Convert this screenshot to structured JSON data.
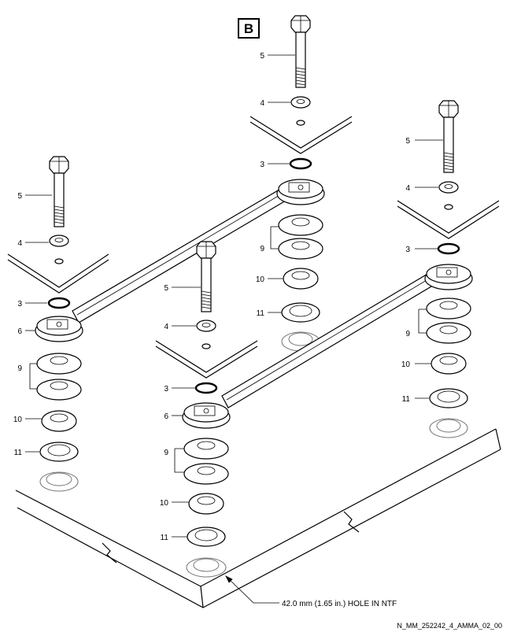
{
  "view_letter": "B",
  "parts": {
    "bolt": "5",
    "washer": "4",
    "o_ring": "3",
    "link": "6",
    "upper_spacers": "9",
    "lower_spacer": "10",
    "bottom_washer": "11"
  },
  "callout_note": "42.0 mm (1.65 in.) HOLE IN NTF",
  "figure_code": "N_MM_252242_4_AMMA_02_00"
}
